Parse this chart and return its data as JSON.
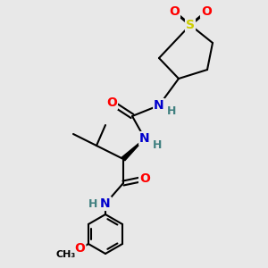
{
  "bg_color": "#e8e8e8",
  "atom_colors": {
    "C": "#000000",
    "N": "#0000cc",
    "O": "#ff0000",
    "S": "#cccc00",
    "H": "#408080"
  },
  "bond_color": "#000000",
  "bond_width": 1.5,
  "figsize": [
    3.0,
    3.0
  ],
  "dpi": 100
}
